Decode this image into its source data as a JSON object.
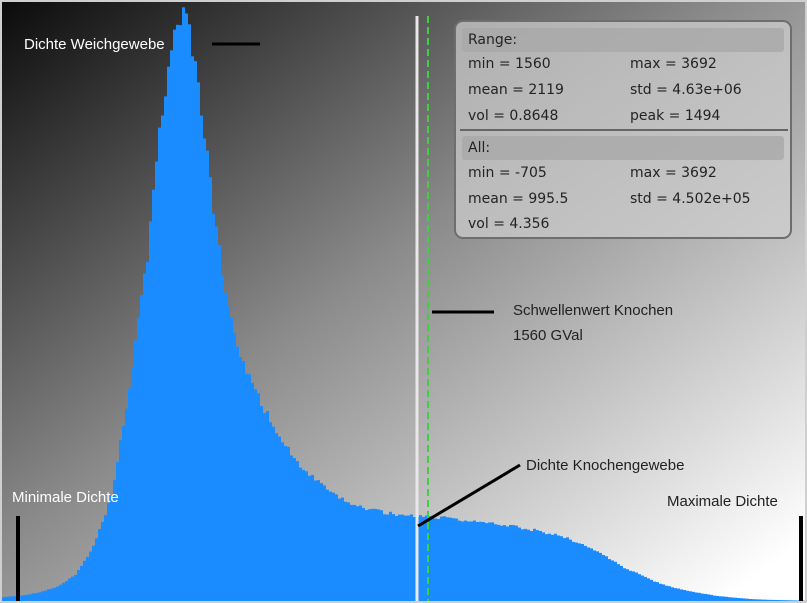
{
  "stats_panel": {
    "range": {
      "header": "Range:",
      "min": "min = 1560",
      "max": "max = 3692",
      "mean": "mean = 2119",
      "std": "std = 4.63e+06",
      "vol": "vol = 0.8648",
      "peak": "peak = 1494"
    },
    "all": {
      "header": "All:",
      "min": "min = -705",
      "max": "max = 3692",
      "mean": "mean = 995.5",
      "std": "std = 4.502e+05",
      "vol": "vol = 4.356"
    }
  },
  "annotations": {
    "soft_tissue": "Dichte Weichgewebe",
    "threshold_line1": "Schwellenwert Knochen",
    "threshold_line2": "1560 GVal",
    "bone_tissue": "Dichte Knochengewebe",
    "min_density": "Minimale Dichte",
    "max_density": "Maximale Dichte"
  },
  "colors": {
    "bars": "#1a8cff",
    "threshold_line": "#e8e8e8",
    "marker_line": "#3fcf3f",
    "background_dark": "#0b0b0b",
    "background_light": "#ffffff"
  },
  "chart_data": {
    "type": "area",
    "x_range": [
      -705,
      3692
    ],
    "grid": false,
    "x": [
      -705,
      -600,
      -500,
      -400,
      -300,
      -200,
      -100,
      0,
      100,
      150,
      200,
      250,
      300,
      350,
      400,
      450,
      500,
      550,
      600,
      700,
      800,
      900,
      1000,
      1100,
      1200,
      1300,
      1400,
      1450,
      1500,
      1560,
      1600,
      1700,
      1800,
      1900,
      2000,
      2100,
      2200,
      2300,
      2400,
      2500,
      2600,
      2700,
      2800,
      2900,
      3000,
      3100,
      3200,
      3300,
      3400,
      3500,
      3600,
      3692
    ],
    "values": [
      10,
      14,
      22,
      38,
      70,
      145,
      280,
      580,
      930,
      1180,
      1380,
      1500,
      1520,
      1420,
      1240,
      1030,
      860,
      730,
      640,
      530,
      440,
      370,
      320,
      280,
      255,
      240,
      230,
      225,
      222,
      222,
      221,
      218,
      212,
      206,
      200,
      194,
      186,
      176,
      162,
      142,
      116,
      88,
      66,
      45,
      32,
      22,
      14,
      9,
      5,
      3,
      2,
      1
    ],
    "threshold": 1560
  }
}
